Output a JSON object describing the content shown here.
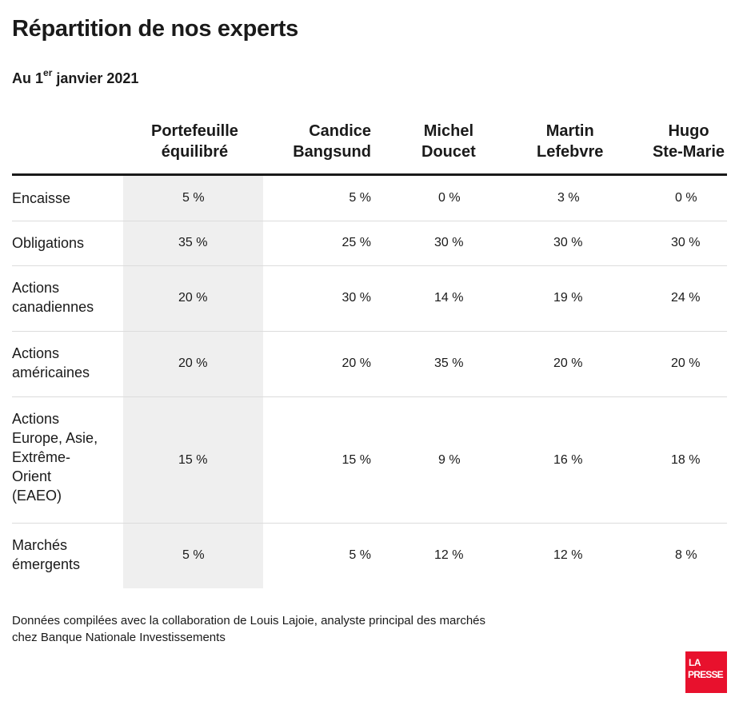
{
  "title": "Répartition de nos experts",
  "subtitle": {
    "prefix": "Au 1",
    "superscript": "er",
    "suffix": " janvier 2021"
  },
  "chart_data": {
    "type": "table",
    "columns": [
      {
        "line1": "Portefeuille",
        "line2": "équilibré",
        "highlight": true
      },
      {
        "line1": "Candice",
        "line2": "Bangsund"
      },
      {
        "line1": "Michel",
        "line2": "Doucet"
      },
      {
        "line1": "Martin",
        "line2": "Lefebvre"
      },
      {
        "line1": "Hugo",
        "line2": "Ste-Marie"
      }
    ],
    "rows": [
      {
        "label": [
          "Encaisse"
        ],
        "values": [
          "5 %",
          "5 %",
          "0 %",
          "3 %",
          "0 %"
        ]
      },
      {
        "label": [
          "Obligations"
        ],
        "values": [
          "35 %",
          "25 %",
          "30 %",
          "30 %",
          "30 %"
        ]
      },
      {
        "label": [
          "Actions",
          "canadiennes"
        ],
        "values": [
          "20 %",
          "30 %",
          "14 %",
          "19 %",
          "24 %"
        ]
      },
      {
        "label": [
          "Actions",
          "américaines"
        ],
        "values": [
          "20 %",
          "20 %",
          "35 %",
          "20 %",
          "20 %"
        ]
      },
      {
        "label": [
          "Actions",
          "Europe, Asie,",
          "Extrême-",
          "Orient",
          "(EAEO)"
        ],
        "values": [
          "15 %",
          "15 %",
          "9 %",
          "16 %",
          "18 %"
        ]
      },
      {
        "label": [
          "Marchés",
          "émergents"
        ],
        "values": [
          "5 %",
          "5 %",
          "12 %",
          "12 %",
          "8 %"
        ]
      }
    ],
    "highlight_color": "#efefef"
  },
  "note": {
    "line1": "Données compilées avec la collaboration de Louis Lajoie, analyste principal des marchés",
    "line2": "chez Banque Nationale Investissements"
  },
  "logo": {
    "line1": "LA",
    "line2": "PRESSE",
    "color": "#e8112d"
  }
}
